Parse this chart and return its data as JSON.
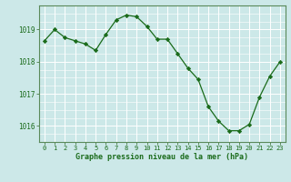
{
  "x": [
    0,
    1,
    2,
    3,
    4,
    5,
    6,
    7,
    8,
    9,
    10,
    11,
    12,
    13,
    14,
    15,
    16,
    17,
    18,
    19,
    20,
    21,
    22,
    23
  ],
  "y": [
    1018.65,
    1019.0,
    1018.75,
    1018.65,
    1018.55,
    1018.35,
    1018.85,
    1019.3,
    1019.45,
    1019.4,
    1019.1,
    1018.7,
    1018.7,
    1018.25,
    1017.8,
    1017.45,
    1016.6,
    1016.15,
    1015.85,
    1015.85,
    1016.05,
    1016.9,
    1017.55,
    1018.0
  ],
  "line_color": "#1a6b1a",
  "marker": "D",
  "marker_size": 2.2,
  "bg_color": "#cce8e8",
  "grid_color": "#ffffff",
  "xlabel": "Graphe pression niveau de la mer (hPa)",
  "xlabel_color": "#1a6b1a",
  "tick_color": "#1a6b1a",
  "axis_color": "#5a8a5a",
  "ylim": [
    1015.5,
    1019.75
  ],
  "yticks": [
    1016,
    1017,
    1018,
    1019
  ],
  "xlim": [
    -0.5,
    23.5
  ],
  "xticks": [
    0,
    1,
    2,
    3,
    4,
    5,
    6,
    7,
    8,
    9,
    10,
    11,
    12,
    13,
    14,
    15,
    16,
    17,
    18,
    19,
    20,
    21,
    22,
    23
  ]
}
